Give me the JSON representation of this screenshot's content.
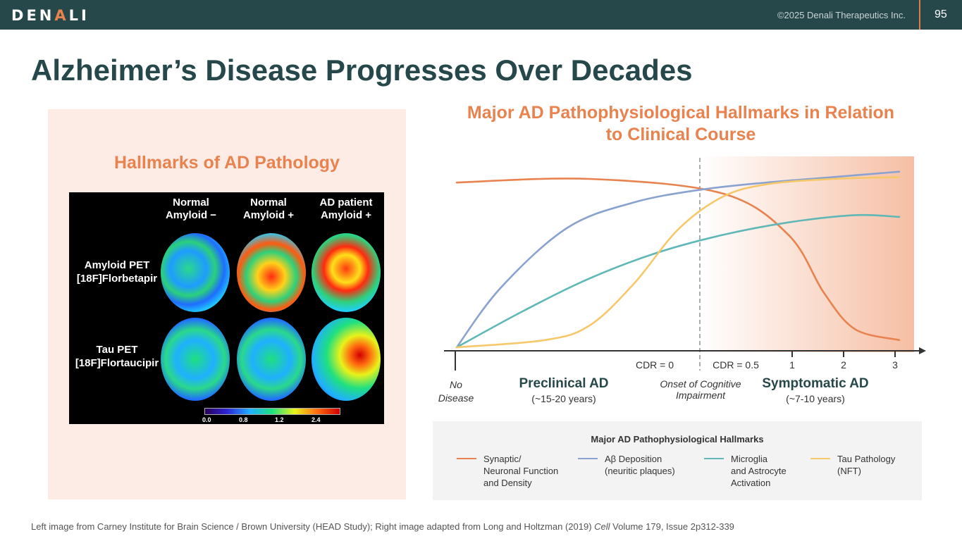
{
  "header": {
    "logo_left": "D",
    "logo_mid": "EN",
    "logo_accent": "A",
    "logo_right": "LI",
    "copyright": "©2025 Denali Therapeutics Inc.",
    "page_number": "95"
  },
  "slide": {
    "title": "Alzheimer’s Disease Progresses Over Decades"
  },
  "left_panel": {
    "heading": "Hallmarks of AD Pathology",
    "columns": [
      {
        "line1": "Normal",
        "line2": "Amyloid −"
      },
      {
        "line1": "Normal",
        "line2": "Amyloid +"
      },
      {
        "line1": "AD patient",
        "line2": "Amyloid +"
      }
    ],
    "rows": [
      {
        "line1": "Amyloid PET",
        "line2": "[18F]Florbetapir"
      },
      {
        "line1": "Tau PET",
        "line2": "[18F]Flortaucipir"
      }
    ],
    "scale_labels": [
      "0.0",
      "0.8",
      "1.2",
      "2.4"
    ]
  },
  "chart_data": {
    "type": "line",
    "title": "Major AD Pathophysiological Hallmarks in Relation to Clinical Course",
    "x_labels": {
      "cdr0": "CDR = 0",
      "cdr05": "CDR = 0.5",
      "t1": "1",
      "t2": "2",
      "t3": "3"
    },
    "stages": {
      "no_disease_1": "No",
      "no_disease_2": "Disease",
      "preclinical": "Preclinical AD",
      "preclinical_years": "(~15-20 years)",
      "onset_1": "Onset of Cognitive",
      "onset_2": "Impairment",
      "symptomatic": "Symptomatic AD",
      "symptomatic_years": "(~7-10 years)"
    },
    "series": [
      {
        "name": "Synaptic/ Neuronal Function and Density",
        "color": "#e8834f",
        "x": [
          0,
          0.3,
          0.6,
          0.75,
          0.83,
          0.9,
          1.0
        ],
        "y": [
          0.91,
          0.93,
          0.85,
          0.62,
          0.3,
          0.1,
          0.04
        ]
      },
      {
        "name": "Aβ Deposition (neuritic plaques)",
        "color": "#8aa2cf",
        "x": [
          0,
          0.1,
          0.25,
          0.4,
          0.55,
          0.7,
          0.85,
          1.0
        ],
        "y": [
          0.0,
          0.33,
          0.66,
          0.8,
          0.87,
          0.91,
          0.94,
          0.97
        ]
      },
      {
        "name": "Microglia and Astrocyte Activation",
        "color": "#5fb8b6",
        "x": [
          0,
          0.15,
          0.3,
          0.45,
          0.6,
          0.75,
          0.9,
          1.0
        ],
        "y": [
          0.0,
          0.2,
          0.38,
          0.52,
          0.62,
          0.69,
          0.73,
          0.72
        ]
      },
      {
        "name": "Tau Pathology (NFT)",
        "color": "#f7c86a",
        "x": [
          0,
          0.2,
          0.3,
          0.4,
          0.5,
          0.6,
          0.7,
          0.85,
          1.0
        ],
        "y": [
          0.0,
          0.04,
          0.12,
          0.35,
          0.65,
          0.83,
          0.9,
          0.93,
          0.94
        ]
      }
    ]
  },
  "legend": {
    "title": "Major AD Pathophysiological Hallmarks",
    "items": [
      {
        "l1": "Synaptic/",
        "l2": "Neuronal Function",
        "l3": "and Density"
      },
      {
        "l1": "Aβ Deposition",
        "l2": "(neuritic plaques)",
        "l3": ""
      },
      {
        "l1": "Microglia",
        "l2": "and Astrocyte",
        "l3": "Activation"
      },
      {
        "l1": "Tau Pathology",
        "l2": "(NFT)",
        "l3": ""
      }
    ]
  },
  "footnote": {
    "part1": "Left image from Carney Institute for Brain Science / Brown University (HEAD Study); Right image adapted from Long and Holtzman (2019) ",
    "journal": "Cell",
    "part2": " Volume 179, Issue 2p312-339"
  }
}
